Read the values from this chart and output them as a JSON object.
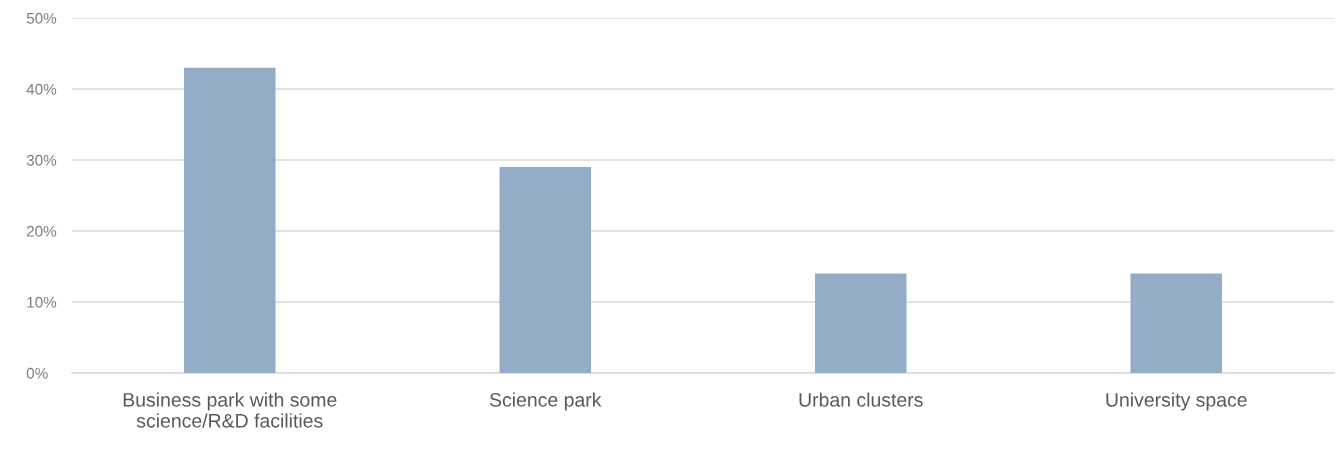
{
  "chart_data": {
    "type": "bar",
    "categories": [
      "Business park with some\nscience/R&D facilities",
      "Science park",
      "Urban clusters",
      "University space"
    ],
    "values": [
      43,
      29,
      14,
      14
    ],
    "color": "#93adc8",
    "ylim": [
      0,
      50
    ],
    "yticks": [
      {
        "value": 0,
        "label": "0%"
      },
      {
        "value": 10,
        "label": "10%"
      },
      {
        "value": 20,
        "label": "20%"
      },
      {
        "value": 30,
        "label": "30%"
      },
      {
        "value": 40,
        "label": "40%"
      },
      {
        "value": 50,
        "label": "50%"
      }
    ],
    "grid": "y",
    "legend": false
  }
}
